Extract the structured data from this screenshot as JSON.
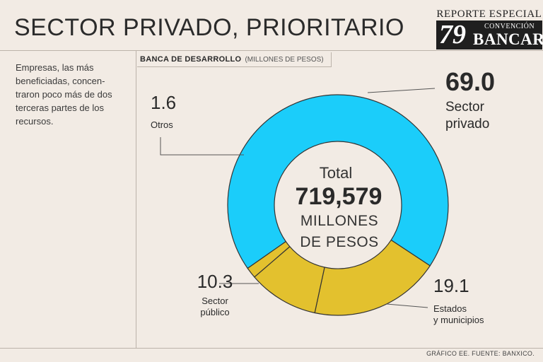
{
  "header": {
    "title": "SECTOR PRIVADO, PRIORITARIO"
  },
  "badge": {
    "top": "REPORTE ESPECIAL",
    "number": "79",
    "line1": "CONVENCIÓN",
    "line2": "BANCARIA"
  },
  "intro": "Empresas, las más beneficiadas, concen-traron poco más de dos terceras partes de los recursos.",
  "chart_title": "BANCA DE DESARROLLO",
  "chart_units": "(MILLONES DE PESOS)",
  "center": {
    "label": "Total",
    "value": "719,579",
    "unit_line1": "MILLONES",
    "unit_line2": "DE PESOS"
  },
  "source": "GRÁFICO EE. FUENTE: BANXICO.",
  "colors": {
    "primary": "#1bcdfa",
    "secondary": "#e3c12e"
  },
  "chart_data": {
    "type": "pie",
    "variant": "donut",
    "title": "BANCA DE DESARROLLO",
    "units": "MILLONES DE PESOS",
    "total": 719579,
    "slices": [
      {
        "label": "Sector privado",
        "label_lines": [
          "Sector",
          "privado"
        ],
        "value": 69.0,
        "value_label": "69.0",
        "color": "#1bcdfa"
      },
      {
        "label": "Estados y municipios",
        "label_lines": [
          "Estados",
          "y municipios"
        ],
        "value": 19.1,
        "value_label": "19.1",
        "color": "#e3c12e"
      },
      {
        "label": "Sector público",
        "label_lines": [
          "Sector",
          "público"
        ],
        "value": 10.3,
        "value_label": "10.3",
        "color": "#e3c12e"
      },
      {
        "label": "Otros",
        "label_lines": [
          "Otros"
        ],
        "value": 1.6,
        "value_label": "1.6",
        "color": "#e3c12e"
      }
    ]
  }
}
